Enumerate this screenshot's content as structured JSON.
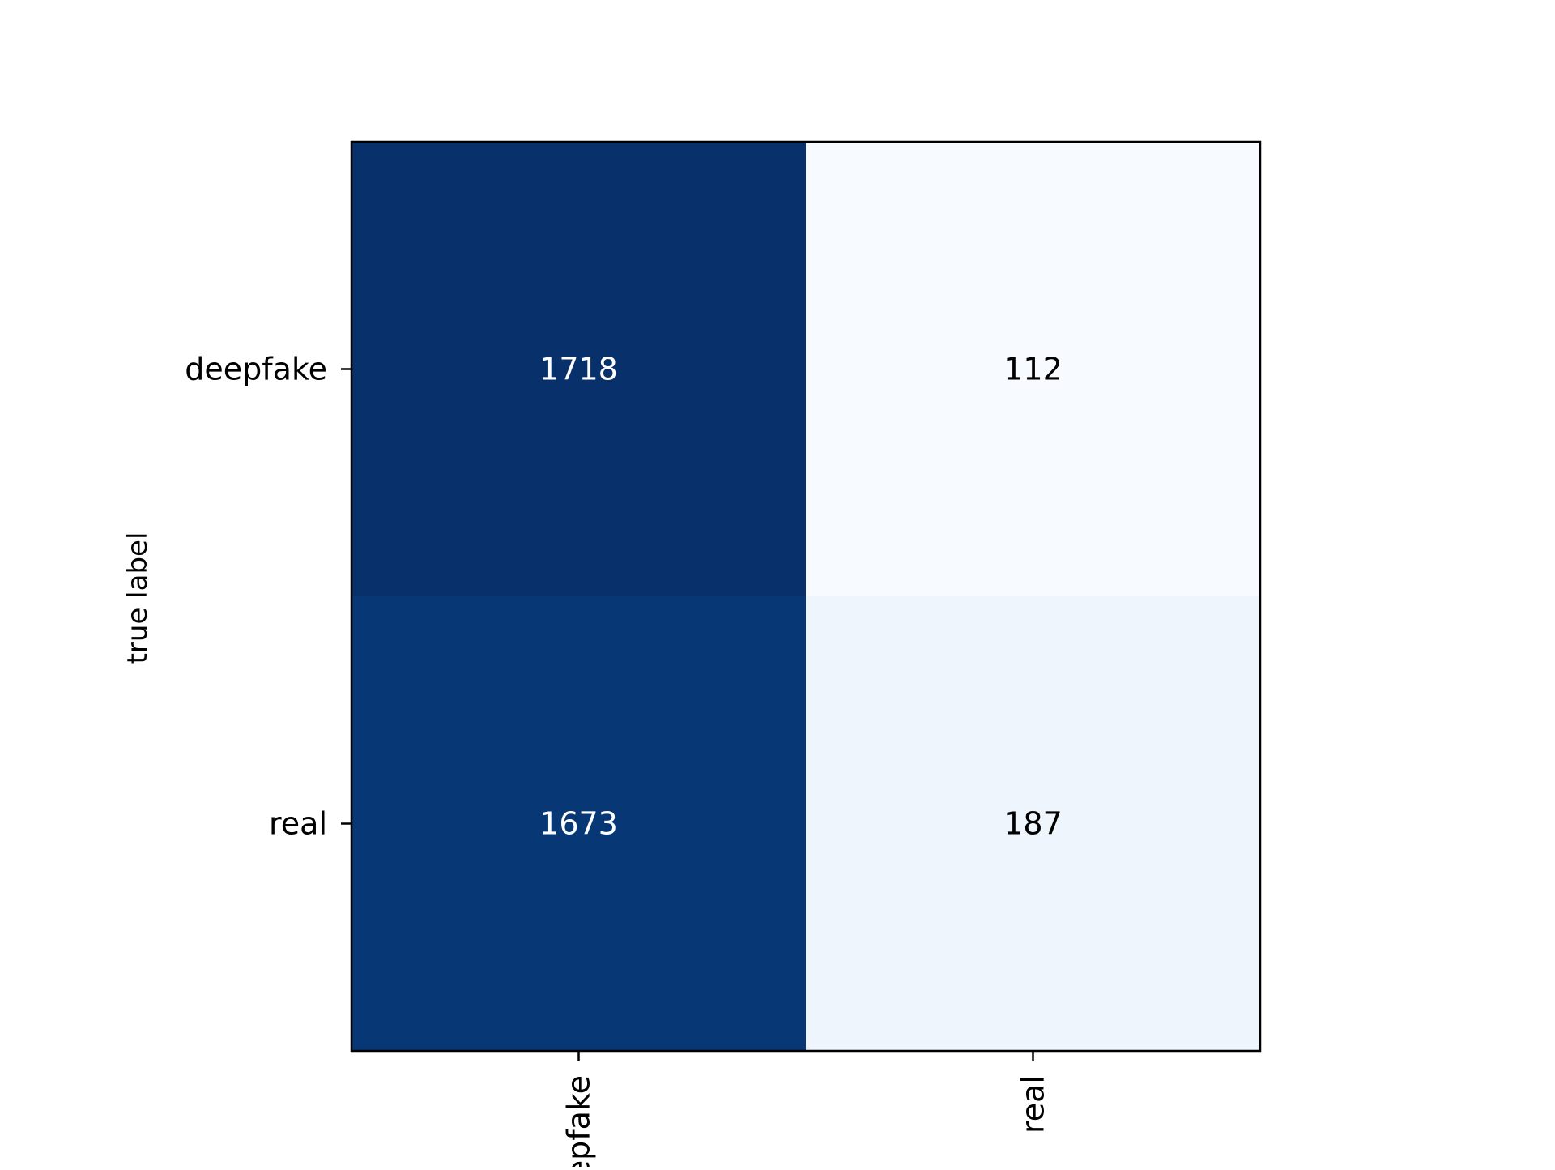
{
  "chart_data": {
    "type": "heatmap",
    "title": "",
    "xlabel": "",
    "ylabel": "true label",
    "x_categories": [
      "deepfake",
      "real"
    ],
    "y_categories": [
      "deepfake",
      "real"
    ],
    "values": [
      [
        1718,
        112
      ],
      [
        1673,
        187
      ]
    ],
    "colormap": "Blues",
    "colors": {
      "low": "#f7fbff",
      "high": "#08306b",
      "text_dark": "#000000",
      "text_light": "#ffffff",
      "axis": "#000000"
    },
    "grid": false,
    "legend": "none"
  }
}
